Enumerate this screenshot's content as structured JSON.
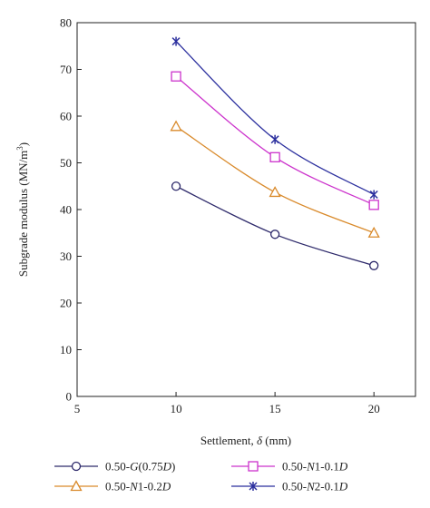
{
  "chart_data": {
    "type": "line",
    "xlabel": {
      "before": "Settlement, ",
      "symbol": "δ",
      "after": " (mm)"
    },
    "ylabel": {
      "base": "Subgrade modulus (MN/m",
      "sup": "3",
      "close": ")"
    },
    "xlim": [
      5,
      22.1
    ],
    "ylim": [
      0,
      80
    ],
    "xticks": [
      5,
      10,
      15,
      20
    ],
    "yticks": [
      0,
      10,
      20,
      30,
      40,
      50,
      60,
      70,
      80
    ],
    "grid": false,
    "legend_position": "bottom",
    "series": [
      {
        "name": "0.50-G(0.75D)",
        "name_parts": [
          {
            "text": "0.50-",
            "italic": false
          },
          {
            "text": "G",
            "italic": true
          },
          {
            "text": "(0.75",
            "italic": false
          },
          {
            "text": "D",
            "italic": true
          },
          {
            "text": ")",
            "italic": false
          }
        ],
        "color": "#2e2a6b",
        "marker": "circle",
        "x": [
          10,
          15,
          20
        ],
        "y": [
          45,
          34.7,
          28
        ]
      },
      {
        "name": "0.50-N1-0.1D",
        "name_parts": [
          {
            "text": "0.50-",
            "italic": false
          },
          {
            "text": "N",
            "italic": true
          },
          {
            "text": "1-0.1",
            "italic": false
          },
          {
            "text": "D",
            "italic": true
          }
        ],
        "color": "#cc33cc",
        "marker": "square",
        "x": [
          10,
          15,
          20
        ],
        "y": [
          68.5,
          51.2,
          41
        ]
      },
      {
        "name": "0.50-N1-0.2D",
        "name_parts": [
          {
            "text": "0.50-",
            "italic": false
          },
          {
            "text": "N",
            "italic": true
          },
          {
            "text": "1-0.2",
            "italic": false
          },
          {
            "text": "D",
            "italic": true
          }
        ],
        "color": "#d98a2b",
        "marker": "triangle",
        "x": [
          10,
          15,
          20
        ],
        "y": [
          57.8,
          43.7,
          35
        ]
      },
      {
        "name": "0.50-N2-0.1D",
        "name_parts": [
          {
            "text": "0.50-",
            "italic": false
          },
          {
            "text": "N",
            "italic": true
          },
          {
            "text": "2-0.1",
            "italic": false
          },
          {
            "text": "D",
            "italic": true
          }
        ],
        "color": "#2b2f9e",
        "marker": "star",
        "x": [
          10,
          15,
          20
        ],
        "y": [
          76,
          55,
          43.2
        ]
      }
    ]
  }
}
